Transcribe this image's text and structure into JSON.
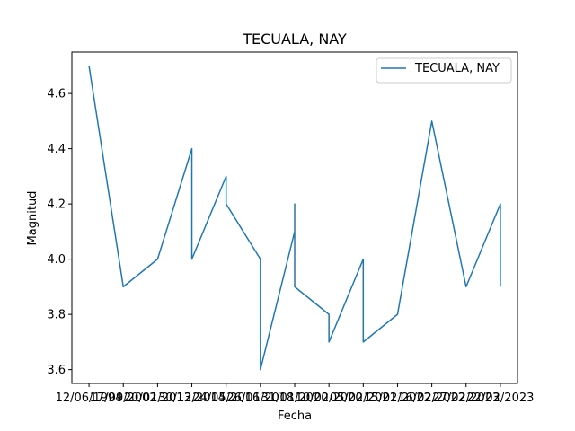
{
  "chart_data": {
    "type": "line",
    "title": "TECUALA, NAY",
    "xlabel": "Fecha",
    "ylabel": "Magnitud",
    "x_tick_labels": [
      "12/06/1994",
      "17/09/2002",
      "20/01/2013",
      "30/12/2014",
      "24/05/2016",
      "26/01/2018",
      "31/01/2020",
      "10/02/2020",
      "05/02/2021",
      "15/02/2022",
      "16/02/2022",
      "27/02/2023",
      "22/02/2023"
    ],
    "ylim": [
      3.55,
      4.75
    ],
    "y_ticks": [
      3.6,
      3.8,
      4.0,
      4.2,
      4.4,
      4.6
    ],
    "grid": false,
    "legend_position": "top-right",
    "series": [
      {
        "name": "TECUALA, NAY",
        "color": "#1f77b4",
        "points": [
          {
            "x": 0,
            "y": 4.7
          },
          {
            "x": 1,
            "y": 3.9
          },
          {
            "x": 2,
            "y": 4.0
          },
          {
            "x": 3,
            "y": 4.4
          },
          {
            "x": 3,
            "y": 4.0
          },
          {
            "x": 4,
            "y": 4.3
          },
          {
            "x": 4,
            "y": 4.2
          },
          {
            "x": 5,
            "y": 4.0
          },
          {
            "x": 5,
            "y": 3.6
          },
          {
            "x": 6,
            "y": 4.1
          },
          {
            "x": 6,
            "y": 4.2
          },
          {
            "x": 6,
            "y": 3.9
          },
          {
            "x": 7,
            "y": 3.8
          },
          {
            "x": 7,
            "y": 3.7
          },
          {
            "x": 8,
            "y": 4.0
          },
          {
            "x": 8,
            "y": 3.7
          },
          {
            "x": 9,
            "y": 3.8
          },
          {
            "x": 10,
            "y": 4.5
          },
          {
            "x": 11,
            "y": 3.9
          },
          {
            "x": 12,
            "y": 4.2
          },
          {
            "x": 12,
            "y": 3.9
          }
        ]
      }
    ]
  }
}
